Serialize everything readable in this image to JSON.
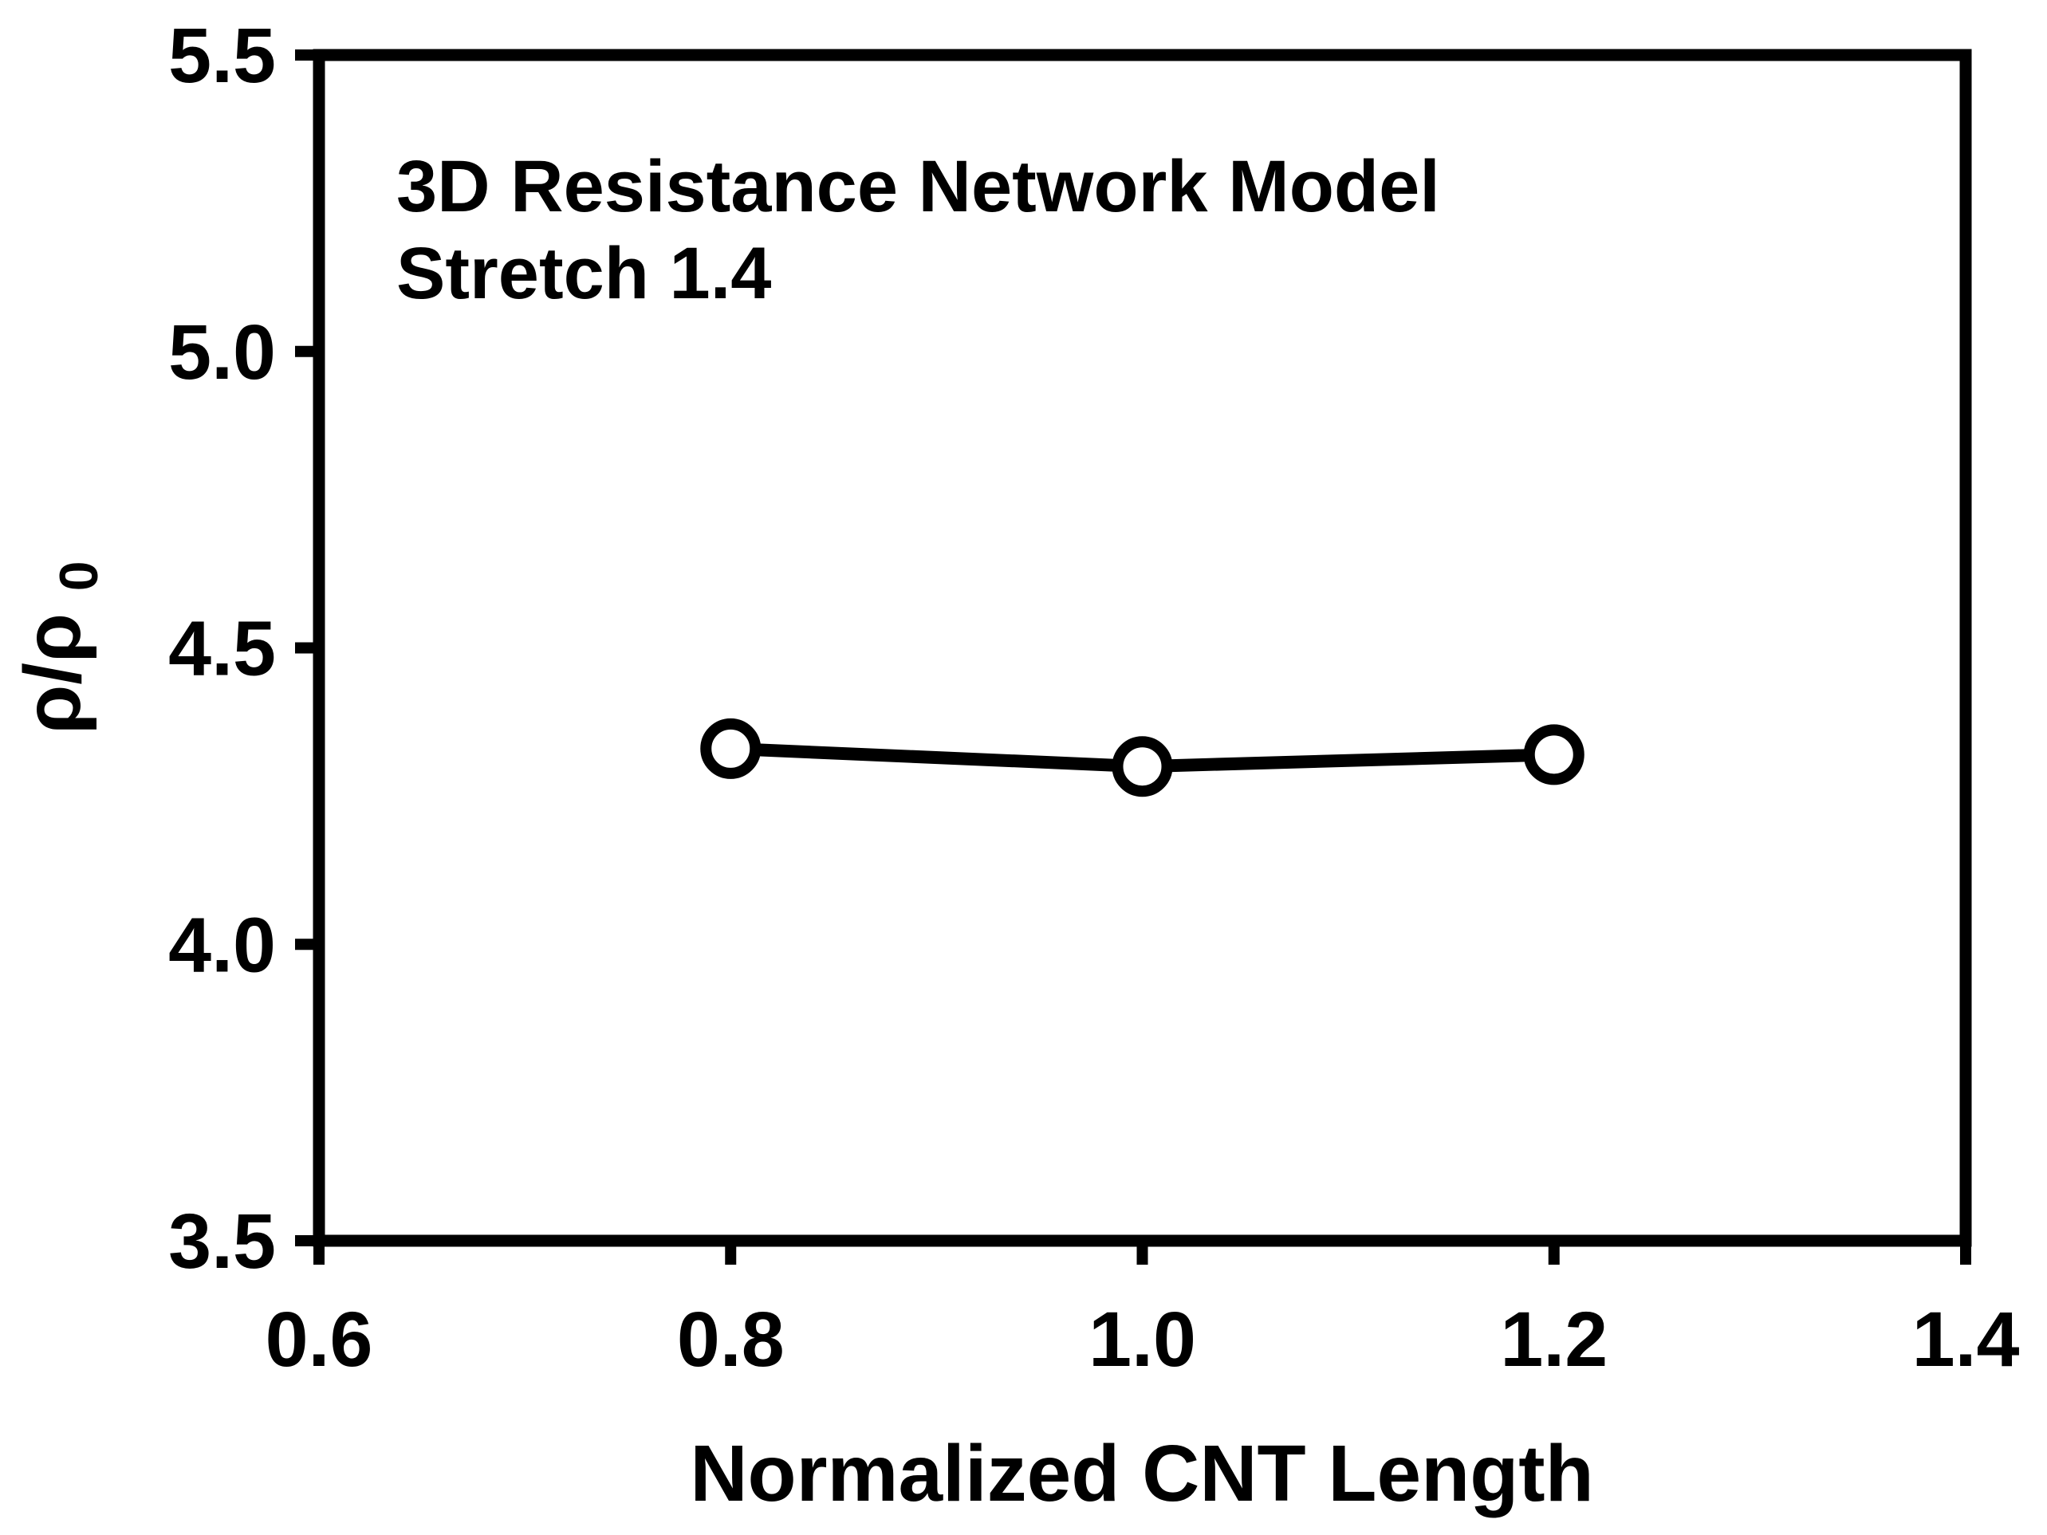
{
  "chart_data": {
    "type": "line",
    "title": "",
    "annotation": {
      "line1": "3D Resistance Network Model",
      "line2": "Stretch 1.4"
    },
    "xlabel": "Normalized CNT Length",
    "ylabel_main": "ρ/ρ",
    "ylabel_sub": "0",
    "xlim": [
      0.6,
      1.4
    ],
    "ylim": [
      3.5,
      5.5
    ],
    "xticks": [
      0.6,
      0.8,
      1.0,
      1.2,
      1.4
    ],
    "xtick_labels": [
      "0.6",
      "0.8",
      "1.0",
      "1.2",
      "1.4"
    ],
    "yticks": [
      3.5,
      4.0,
      4.5,
      5.0,
      5.5
    ],
    "ytick_labels": [
      "3.5",
      "4.0",
      "4.5",
      "5.0",
      "5.5"
    ],
    "grid": false,
    "legend": "none",
    "marker": "open-circle",
    "series": [
      {
        "name": "3D Resistance Network Model, Stretch 1.4",
        "x": [
          0.8,
          1.0,
          1.2
        ],
        "y": [
          4.33,
          4.3,
          4.32
        ]
      }
    ],
    "colors": {
      "line": "#000000",
      "marker_stroke": "#000000",
      "marker_fill": "#ffffff",
      "axis": "#000000",
      "text": "#000000",
      "background": "#ffffff"
    }
  }
}
